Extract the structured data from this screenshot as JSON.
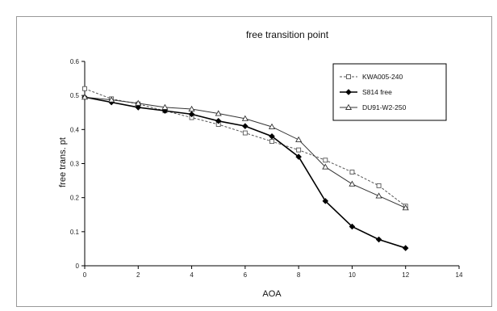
{
  "chart_data": {
    "type": "line",
    "title": "free transition point",
    "xlabel": "AOA",
    "ylabel": "free trans. pt",
    "xlim": [
      0,
      14
    ],
    "ylim": [
      0,
      0.6
    ],
    "xticks": [
      "0",
      "2",
      "4",
      "6",
      "8",
      "10",
      "12",
      "14"
    ],
    "yticks": [
      "0",
      "0.1",
      "0.2",
      "0.3",
      "0.4",
      "0.5",
      "0.6"
    ],
    "grid": false,
    "legend_position": "top-right",
    "series": [
      {
        "name": "KWA005-240",
        "marker": "square",
        "color": "#555555",
        "dash": "dashed",
        "x": [
          0,
          1,
          2,
          3,
          4,
          5,
          6,
          7,
          8,
          9,
          10,
          11,
          12
        ],
        "y": [
          0.52,
          0.49,
          0.475,
          0.455,
          0.435,
          0.415,
          0.39,
          0.365,
          0.34,
          0.31,
          0.275,
          0.235,
          0.175
        ]
      },
      {
        "name": "S814 free",
        "marker": "diamond",
        "color": "#000000",
        "dash": "solid",
        "x": [
          0,
          1,
          2,
          3,
          4,
          5,
          6,
          7,
          8,
          9,
          10,
          11,
          12
        ],
        "y": [
          0.495,
          0.48,
          0.465,
          0.455,
          0.445,
          0.425,
          0.41,
          0.38,
          0.32,
          0.19,
          0.115,
          0.077,
          0.052
        ]
      },
      {
        "name": "DU91-W2-250",
        "marker": "triangle",
        "color": "#333333",
        "dash": "solid",
        "x": [
          0,
          1,
          2,
          3,
          4,
          5,
          6,
          7,
          8,
          9,
          10,
          11,
          12
        ],
        "y": [
          0.495,
          0.487,
          0.477,
          0.465,
          0.46,
          0.447,
          0.432,
          0.408,
          0.37,
          0.29,
          0.24,
          0.205,
          0.17
        ]
      }
    ]
  }
}
